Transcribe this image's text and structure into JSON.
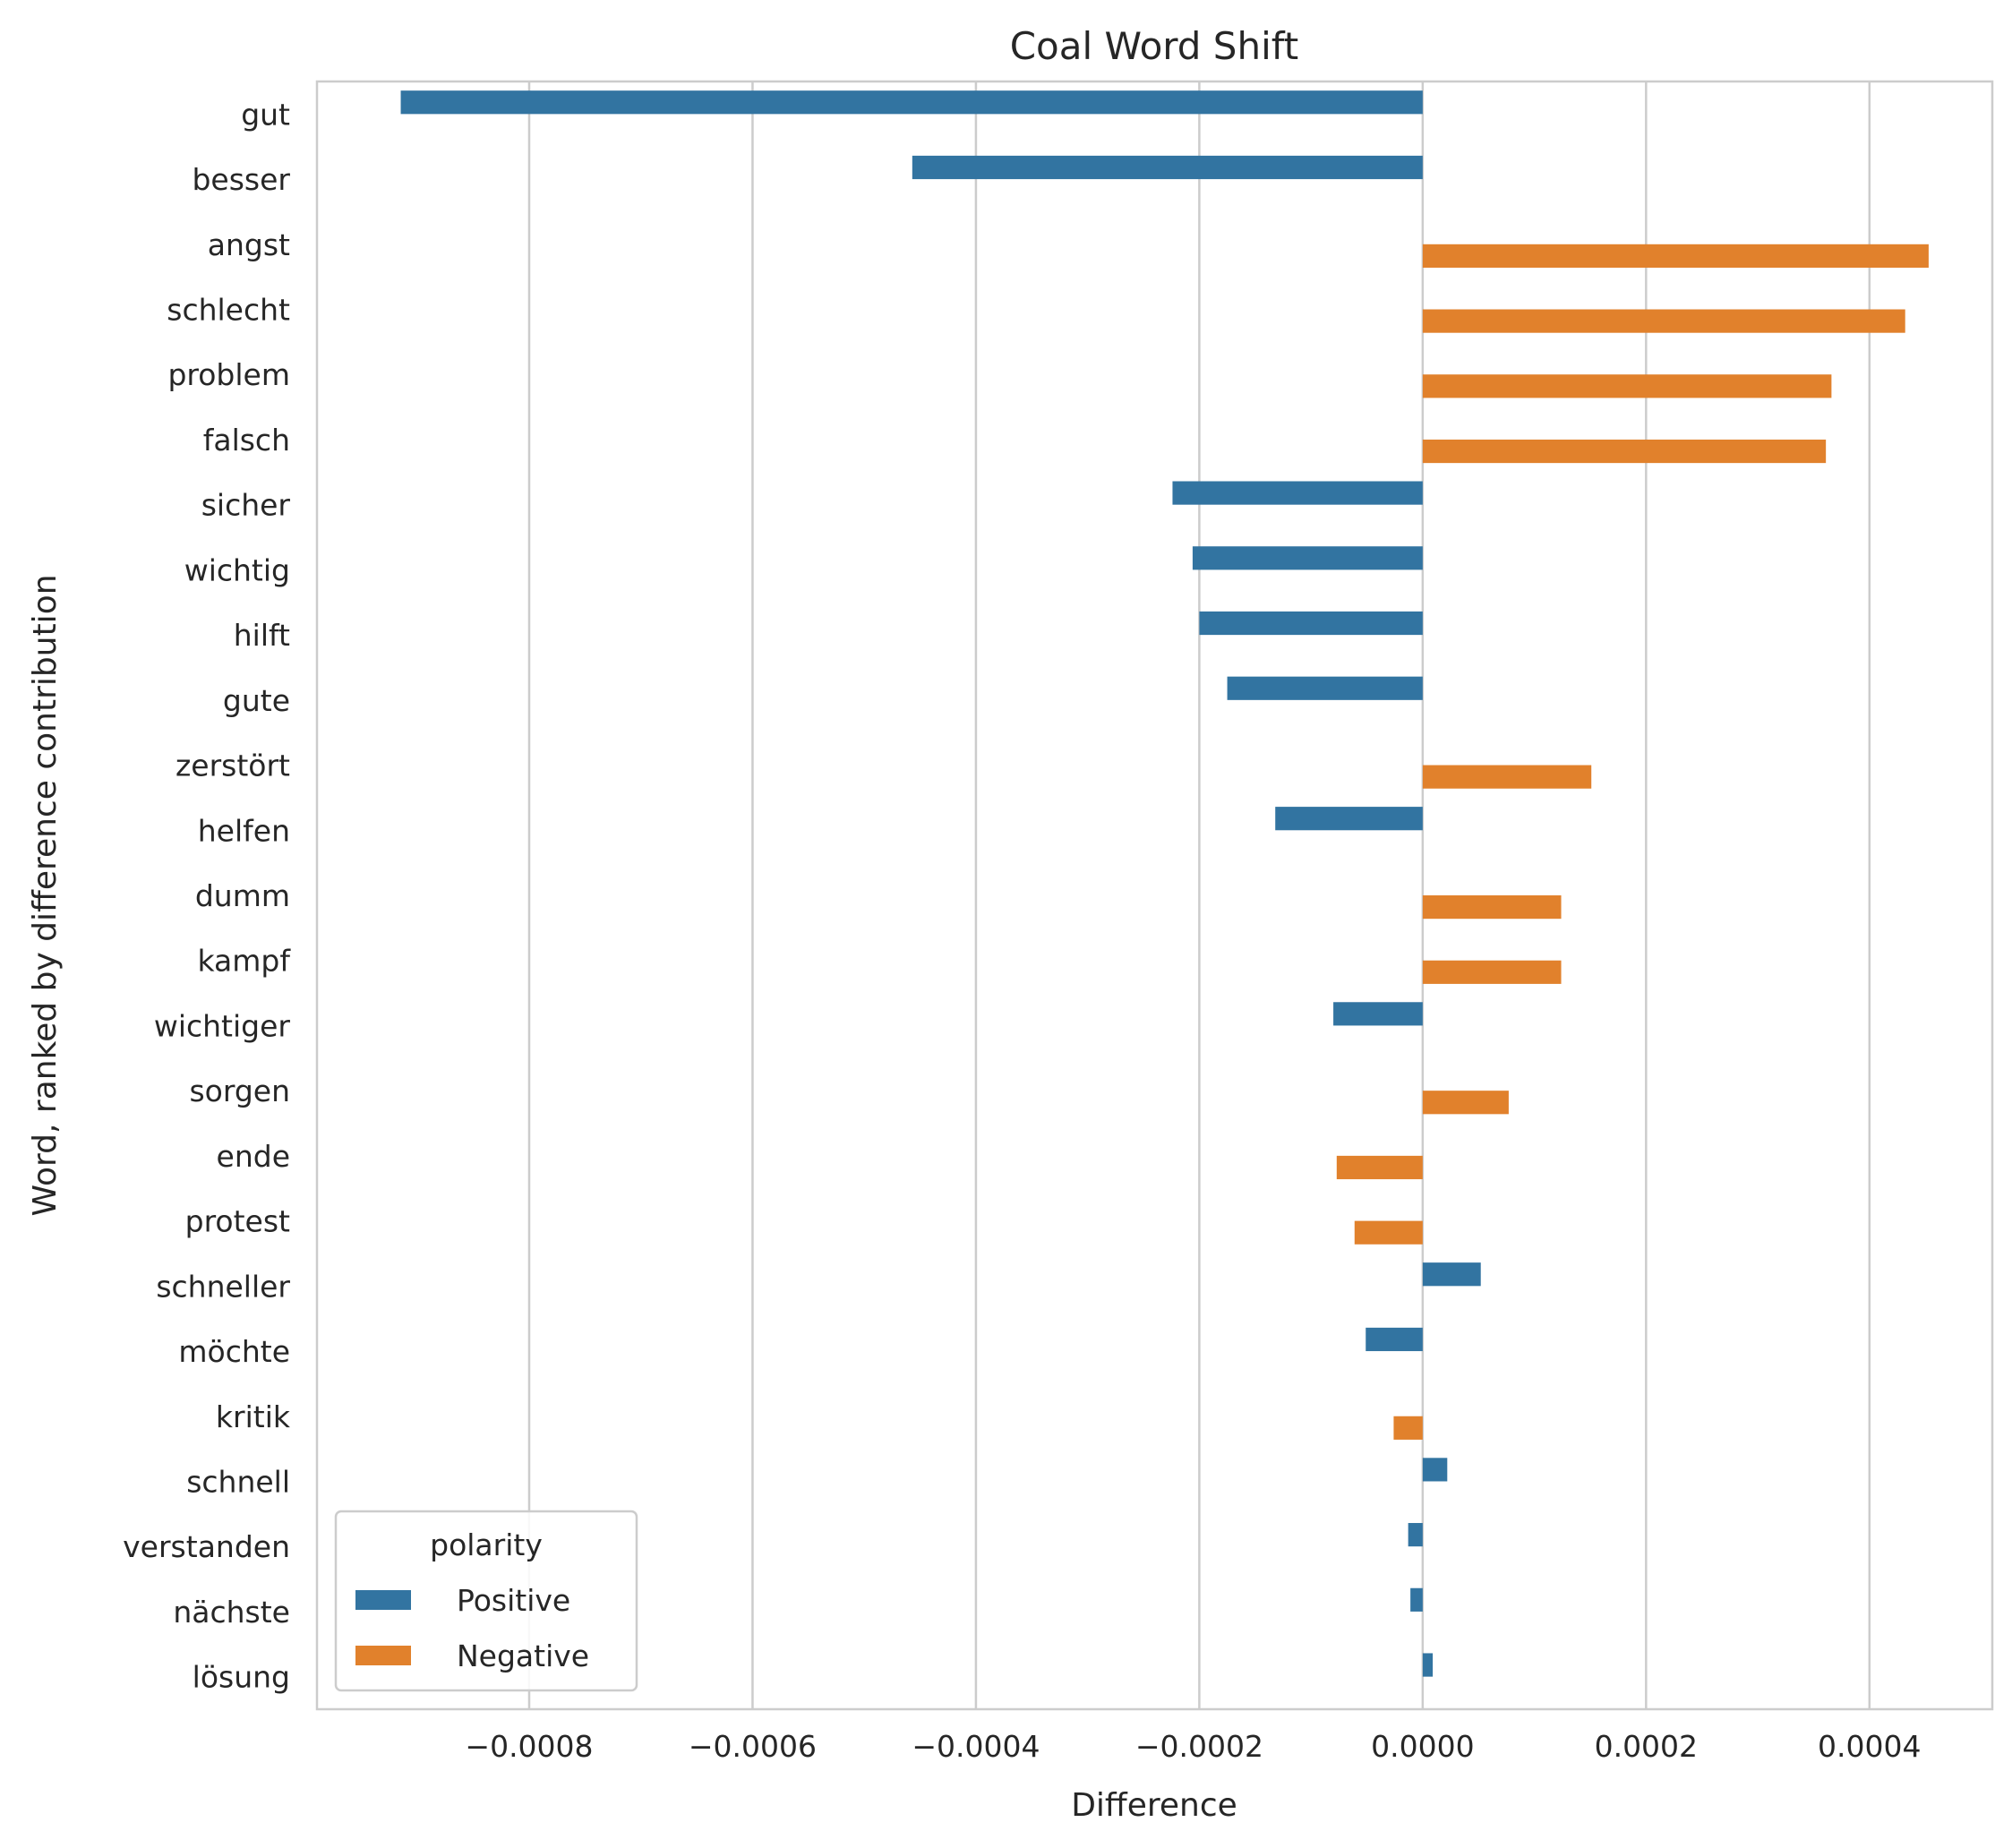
{
  "chart_data": {
    "type": "bar",
    "orientation": "horizontal",
    "title": "Coal Word Shift",
    "xlabel": "Difference",
    "ylabel": "Word, ranked by difference contribution",
    "xlim": [
      -0.00099,
      0.00051
    ],
    "xticks": [
      -0.0008,
      -0.0006,
      -0.0004,
      -0.0002,
      0.0,
      0.0002,
      0.0004
    ],
    "xtick_labels": [
      "−0.0008",
      "−0.0006",
      "−0.0004",
      "−0.0002",
      "0.0000",
      "0.0002",
      "0.0004"
    ],
    "grid": "x",
    "legend": {
      "title": "polarity",
      "placement": "lower-left",
      "entries": [
        {
          "name": "Positive",
          "color": "#3274a1"
        },
        {
          "name": "Negative",
          "color": "#e1812c"
        }
      ]
    },
    "categories": [
      "gut",
      "besser",
      "angst",
      "schlecht",
      "problem",
      "falsch",
      "sicher",
      "wichtig",
      "hilft",
      "gute",
      "zerstört",
      "helfen",
      "dumm",
      "kampf",
      "wichtiger",
      "sorgen",
      "ende",
      "protest",
      "schneller",
      "möchte",
      "kritik",
      "schnell",
      "verstanden",
      "nächste",
      "lösung"
    ],
    "series": [
      {
        "name": "Positive",
        "color": "#3274a1",
        "values": [
          -0.000915,
          -0.000457,
          null,
          null,
          null,
          null,
          -0.000224,
          -0.000206,
          -0.0002,
          -0.000175,
          null,
          -0.000132,
          null,
          null,
          -8e-05,
          null,
          null,
          null,
          5.2e-05,
          -5.1e-05,
          null,
          2.2e-05,
          -1.3e-05,
          -1.1e-05,
          9e-06
        ]
      },
      {
        "name": "Negative",
        "color": "#e1812c",
        "values": [
          null,
          null,
          0.000453,
          0.000432,
          0.000366,
          0.000361,
          null,
          null,
          null,
          null,
          0.000151,
          null,
          0.000124,
          0.000124,
          null,
          7.7e-05,
          -7.7e-05,
          -6.1e-05,
          null,
          null,
          -2.6e-05,
          null,
          null,
          null,
          null
        ]
      }
    ]
  }
}
